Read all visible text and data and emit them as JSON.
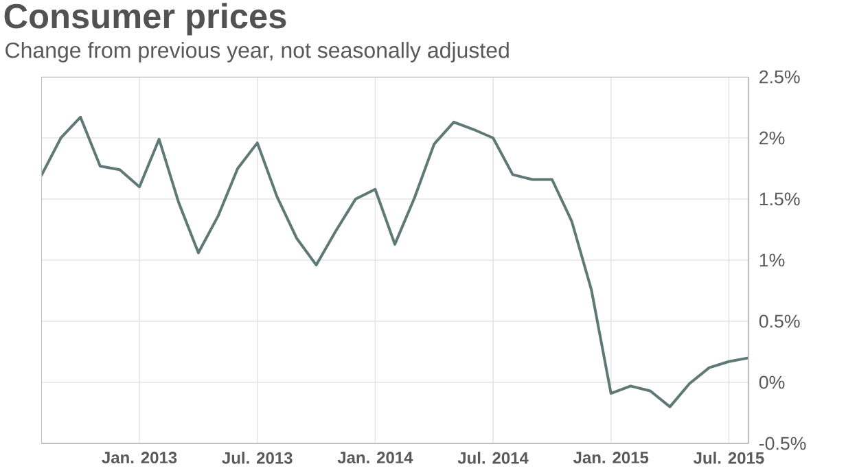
{
  "chart_data": {
    "type": "line",
    "title": "Consumer prices",
    "subtitle": "Change from previous year, not seasonally adjusted",
    "x": [
      "2012-08",
      "2012-09",
      "2012-10",
      "2012-11",
      "2012-12",
      "2013-01",
      "2013-02",
      "2013-03",
      "2013-04",
      "2013-05",
      "2013-06",
      "2013-07",
      "2013-08",
      "2013-09",
      "2013-10",
      "2013-11",
      "2013-12",
      "2014-01",
      "2014-02",
      "2014-03",
      "2014-04",
      "2014-05",
      "2014-06",
      "2014-07",
      "2014-08",
      "2014-09",
      "2014-10",
      "2014-11",
      "2014-12",
      "2015-01",
      "2015-02",
      "2015-03",
      "2015-04",
      "2015-05",
      "2015-06",
      "2015-07",
      "2015-08"
    ],
    "series": [
      {
        "color": "#5f7a76",
        "values": [
          1.69,
          2.0,
          2.17,
          1.77,
          1.74,
          1.6,
          1.99,
          1.47,
          1.06,
          1.36,
          1.75,
          1.96,
          1.52,
          1.18,
          0.96,
          1.24,
          1.5,
          1.58,
          1.13,
          1.51,
          1.95,
          2.13,
          2.07,
          2.0,
          1.7,
          1.66,
          1.66,
          1.32,
          0.76,
          -0.09,
          -0.03,
          -0.07,
          -0.2,
          -0.01,
          0.12,
          0.17,
          0.2
        ]
      }
    ],
    "xlim": [
      "2012-08",
      "2015-08"
    ],
    "xticks": [
      {
        "value": "2013-01",
        "label": "Jan. 2013"
      },
      {
        "value": "2013-07",
        "label": "Jul. 2013"
      },
      {
        "value": "2014-01",
        "label": "Jan. 2014"
      },
      {
        "value": "2014-07",
        "label": "Jul. 2014"
      },
      {
        "value": "2015-01",
        "label": "Jan. 2015"
      },
      {
        "value": "2015-07",
        "label": "Jul. 2015"
      }
    ],
    "ylim": [
      -0.5,
      2.5
    ],
    "yticks": [
      {
        "value": -0.5,
        "label": "-0.5%"
      },
      {
        "value": 0,
        "label": "0%"
      },
      {
        "value": 0.5,
        "label": "0.5%"
      },
      {
        "value": 1,
        "label": "1%"
      },
      {
        "value": 1.5,
        "label": "1.5%"
      },
      {
        "value": 2,
        "label": "2%"
      },
      {
        "value": 2.5,
        "label": "2.5%"
      }
    ],
    "grid": true
  }
}
